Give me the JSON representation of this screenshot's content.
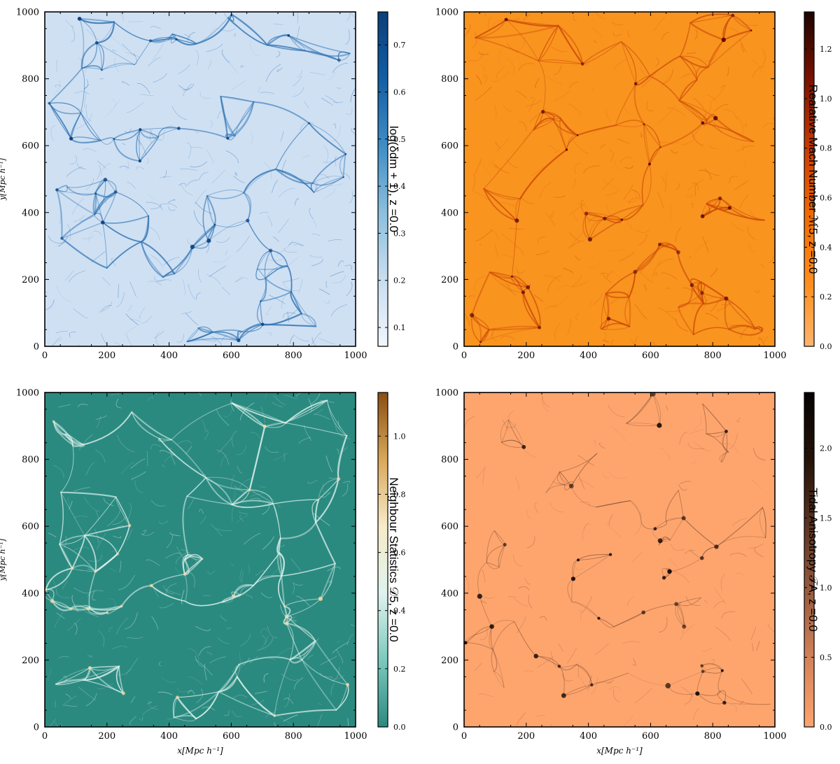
{
  "chart_data": [
    {
      "type": "heatmap",
      "title": "",
      "xlabel": "",
      "ylabel": "y[Mpc h⁻¹]",
      "xlim": [
        0,
        1000
      ],
      "ylim": [
        0,
        1000
      ],
      "xticks": [
        "0",
        "200",
        "400",
        "600",
        "800",
        "1000"
      ],
      "yticks": [
        "0",
        "200",
        "400",
        "600",
        "800",
        "1000"
      ],
      "colorbar": {
        "label": "log(δdm + 1), z =0.0",
        "range": [
          0.06,
          0.77
        ],
        "ticks": [
          "0.1",
          "0.2",
          "0.3",
          "0.4",
          "0.5",
          "0.6",
          "0.7"
        ],
        "colormap": [
          "#f0f7fd",
          "#c9ddf0",
          "#8bbfde",
          "#3f8dc6",
          "#135ea3",
          "#0a3f7a"
        ]
      },
      "field": {
        "base_color": "#cfe0f3",
        "web_color": "#2f74b3",
        "peak_color": "#0b3d7a",
        "style": "filaments"
      }
    },
    {
      "type": "heatmap",
      "title": "",
      "xlabel": "",
      "ylabel": "",
      "xlim": [
        0,
        1000
      ],
      "ylim": [
        0,
        1000
      ],
      "xticks": [
        "0",
        "200",
        "400",
        "600",
        "800",
        "1000"
      ],
      "yticks": [
        "0",
        "200",
        "400",
        "600",
        "800",
        "1000"
      ],
      "colorbar": {
        "label": "Realative Mach Number ℳ5, z =0.0",
        "range": [
          0.0,
          1.35
        ],
        "ticks": [
          "0.0",
          "0.2",
          "0.4",
          "0.6",
          "0.8",
          "1.0",
          "1.2"
        ],
        "colormap": [
          "#fdb46c",
          "#ff8c1a",
          "#f06a00",
          "#c83a00",
          "#7a1200",
          "#1c0400"
        ]
      },
      "field": {
        "base_color": "#f9941f",
        "web_color": "#cc4a05",
        "peak_color": "#5a0b00",
        "style": "filaments"
      }
    },
    {
      "type": "heatmap",
      "title": "",
      "xlabel": "x[Mpc h⁻¹]",
      "ylabel": "y[Mpc h⁻¹]",
      "xlim": [
        0,
        1000
      ],
      "ylim": [
        0,
        1000
      ],
      "xticks": [
        "0",
        "200",
        "400",
        "600",
        "800",
        "1000"
      ],
      "yticks": [
        "0",
        "200",
        "400",
        "600",
        "800",
        "1000"
      ],
      "colorbar": {
        "label": "Neighbour Statistics 𝒟5, z =0.0",
        "range": [
          0.0,
          1.15
        ],
        "ticks": [
          "0.0",
          "0.2",
          "0.4",
          "0.6",
          "0.8",
          "1.0"
        ],
        "colormap": [
          "#2a8a80",
          "#7cc9bd",
          "#dff3ee",
          "#f7ebc8",
          "#d9a75a",
          "#8a4e12"
        ]
      },
      "field": {
        "base_color": "#2b8a80",
        "web_color": "#dff4ef",
        "peak_color": "#f3d8a6",
        "style": "filaments"
      }
    },
    {
      "type": "heatmap",
      "title": "",
      "xlabel": "x[Mpc h⁻¹]",
      "ylabel": "",
      "xlim": [
        0,
        1000
      ],
      "ylim": [
        0,
        1000
      ],
      "xticks": [
        "0",
        "200",
        "400",
        "600",
        "800",
        "1000"
      ],
      "yticks": [
        "0",
        "200",
        "400",
        "600",
        "800",
        "1000"
      ],
      "colorbar": {
        "label": "Tidal Anisotropy 𝒯A, z =0.0",
        "range": [
          0.0,
          2.4
        ],
        "ticks": [
          "0.0",
          "0.5",
          "1.0",
          "1.5",
          "2.0"
        ],
        "colormap": [
          "#fea46e",
          "#d4835a",
          "#9a5d40",
          "#5c3522",
          "#241208",
          "#050202"
        ]
      },
      "field": {
        "base_color": "#fea56e",
        "web_color": "#6a3c25",
        "peak_color": "#0d0604",
        "style": "sparse"
      }
    }
  ]
}
